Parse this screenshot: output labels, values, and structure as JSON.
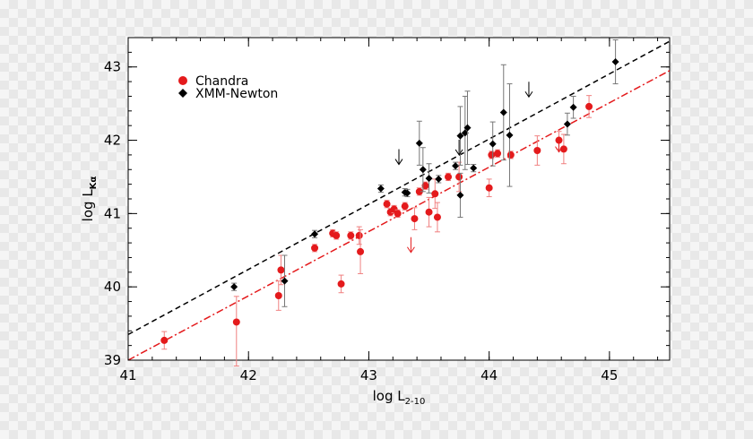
{
  "chart_data": {
    "type": "scatter",
    "xlabel": {
      "main": "log L",
      "sub": "2-10"
    },
    "ylabel": {
      "main": "log L",
      "sub": "Kα"
    },
    "xlim": [
      41,
      45.5
    ],
    "ylim": [
      39,
      43.4
    ],
    "x_ticks": [
      41,
      42,
      43,
      44,
      45
    ],
    "y_ticks": [
      39,
      40,
      41,
      42,
      43
    ],
    "grid": false,
    "legend_position": "top-left",
    "series": [
      {
        "name": "Chandra",
        "marker": "circle",
        "color": "#e41a1c",
        "points": [
          {
            "x": 41.3,
            "y": 39.27,
            "err": [
              0.12,
              0.12
            ]
          },
          {
            "x": 41.9,
            "y": 39.52,
            "err": [
              0.6,
              0.35
            ]
          },
          {
            "x": 42.25,
            "y": 39.88,
            "err": [
              0.2,
              0.2
            ]
          },
          {
            "x": 42.27,
            "y": 40.23,
            "err": [
              0.2,
              0.2
            ]
          },
          {
            "x": 42.55,
            "y": 40.53,
            "err": [
              0.05,
              0.05
            ]
          },
          {
            "x": 42.7,
            "y": 40.73,
            "err": [
              0.05,
              0.05
            ]
          },
          {
            "x": 42.73,
            "y": 40.7,
            "err": [
              0.05,
              0.05
            ]
          },
          {
            "x": 42.77,
            "y": 40.04,
            "err": [
              0.12,
              0.12
            ]
          },
          {
            "x": 42.85,
            "y": 40.7,
            "err": [
              0.05,
              0.05
            ]
          },
          {
            "x": 42.92,
            "y": 40.7,
            "err": [
              0.12,
              0.12
            ]
          },
          {
            "x": 42.93,
            "y": 40.48,
            "err": [
              0.3,
              0.3
            ]
          },
          {
            "x": 43.15,
            "y": 41.13,
            "err": [
              0.05,
              0.05
            ]
          },
          {
            "x": 43.18,
            "y": 41.02,
            "err": [
              0.05,
              0.05
            ]
          },
          {
            "x": 43.21,
            "y": 41.06,
            "err": [
              0.05,
              0.05
            ]
          },
          {
            "x": 43.24,
            "y": 41.0,
            "err": [
              0.05,
              0.05
            ]
          },
          {
            "x": 43.3,
            "y": 41.1,
            "err": [
              0.05,
              0.05
            ]
          },
          {
            "x": 43.38,
            "y": 40.93,
            "err": [
              0.15,
              0.15
            ]
          },
          {
            "x": 43.42,
            "y": 41.3,
            "err": [
              0.05,
              0.05
            ]
          },
          {
            "x": 43.47,
            "y": 41.38,
            "err": [
              0.05,
              0.05
            ]
          },
          {
            "x": 43.5,
            "y": 41.02,
            "err": [
              0.2,
              0.2
            ]
          },
          {
            "x": 43.55,
            "y": 41.27,
            "err": [
              0.2,
              0.2
            ]
          },
          {
            "x": 43.57,
            "y": 40.95,
            "err": [
              0.2,
              0.2
            ]
          },
          {
            "x": 43.66,
            "y": 41.5,
            "err": [
              0.05,
              0.05
            ]
          },
          {
            "x": 43.75,
            "y": 41.5,
            "err": [
              0.2,
              0.2
            ]
          },
          {
            "x": 44.0,
            "y": 41.35,
            "err": [
              0.12,
              0.12
            ]
          },
          {
            "x": 44.02,
            "y": 41.8,
            "err": [
              0.05,
              0.05
            ]
          },
          {
            "x": 44.07,
            "y": 41.82,
            "err": [
              0.05,
              0.05
            ]
          },
          {
            "x": 44.18,
            "y": 41.8,
            "err": [
              0.05,
              0.05
            ]
          },
          {
            "x": 44.4,
            "y": 41.86,
            "err": [
              0.2,
              0.2
            ]
          },
          {
            "x": 44.58,
            "y": 42.0,
            "err": [
              0.12,
              0.12
            ]
          },
          {
            "x": 44.62,
            "y": 41.88,
            "err": [
              0.2,
              0.2
            ]
          },
          {
            "x": 44.83,
            "y": 42.46,
            "err": [
              0.15,
              0.15
            ]
          }
        ],
        "upper_limits": [
          {
            "x": 43.35,
            "y": 40.58
          },
          {
            "x": 44.58,
            "y": 41.95
          }
        ]
      },
      {
        "name": "XMM-Newton",
        "marker": "diamond",
        "color": "#000000",
        "points": [
          {
            "x": 41.88,
            "y": 40.0,
            "err": [
              0.05,
              0.05
            ]
          },
          {
            "x": 42.3,
            "y": 40.08,
            "err": [
              0.35,
              0.35
            ]
          },
          {
            "x": 42.55,
            "y": 40.72,
            "err": [
              0.05,
              0.05
            ]
          },
          {
            "x": 43.1,
            "y": 41.34,
            "err": [
              0.05,
              0.05
            ]
          },
          {
            "x": 43.3,
            "y": 41.29,
            "err": [
              0.05,
              0.05
            ]
          },
          {
            "x": 43.32,
            "y": 41.28,
            "err": [
              0.05,
              0.05
            ]
          },
          {
            "x": 43.42,
            "y": 41.96,
            "err": [
              0.3,
              0.3
            ]
          },
          {
            "x": 43.45,
            "y": 41.6,
            "err": [
              0.3,
              0.3
            ]
          },
          {
            "x": 43.5,
            "y": 41.48,
            "err": [
              0.2,
              0.2
            ]
          },
          {
            "x": 43.58,
            "y": 41.47,
            "err": [
              0.05,
              0.05
            ]
          },
          {
            "x": 43.72,
            "y": 41.65,
            "err": [
              0.05,
              0.05
            ]
          },
          {
            "x": 43.76,
            "y": 41.25,
            "err": [
              0.3,
              0.3
            ]
          },
          {
            "x": 43.76,
            "y": 42.06,
            "err": [
              0.4,
              0.4
            ]
          },
          {
            "x": 43.8,
            "y": 42.1,
            "err": [
              0.5,
              0.5
            ]
          },
          {
            "x": 43.82,
            "y": 42.17,
            "err": [
              0.5,
              0.5
            ]
          },
          {
            "x": 43.87,
            "y": 41.62,
            "err": [
              0.05,
              0.05
            ]
          },
          {
            "x": 44.03,
            "y": 41.95,
            "err": [
              0.3,
              0.3
            ]
          },
          {
            "x": 44.12,
            "y": 42.38,
            "err": [
              0.65,
              0.65
            ]
          },
          {
            "x": 44.17,
            "y": 42.07,
            "err": [
              0.7,
              0.7
            ]
          },
          {
            "x": 44.65,
            "y": 42.22,
            "err": [
              0.15,
              0.15
            ]
          },
          {
            "x": 44.7,
            "y": 42.45,
            "err": [
              0.15,
              0.15
            ]
          },
          {
            "x": 45.05,
            "y": 43.07,
            "err": [
              0.3,
              0.3
            ]
          }
        ],
        "upper_limits": [
          {
            "x": 43.25,
            "y": 41.78
          },
          {
            "x": 43.75,
            "y": 41.91
          },
          {
            "x": 44.33,
            "y": 42.7
          }
        ]
      }
    ],
    "fit_lines": [
      {
        "series": "XMM-Newton",
        "style": "dashed",
        "color": "#000000",
        "points": [
          [
            41,
            39.35
          ],
          [
            45.5,
            43.35
          ]
        ]
      },
      {
        "series": "Chandra",
        "style": "dash-dot",
        "color": "#e41a1c",
        "points": [
          [
            41,
            39.0
          ],
          [
            45.5,
            42.95
          ]
        ]
      }
    ]
  }
}
